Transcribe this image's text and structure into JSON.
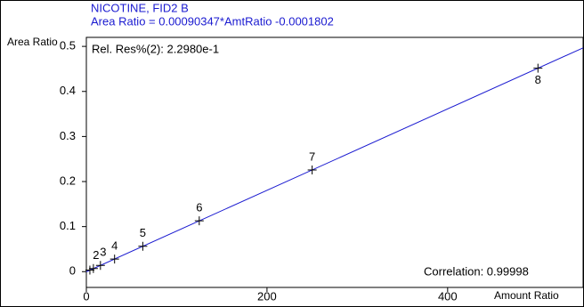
{
  "chart_data": {
    "type": "scatter",
    "title": "NICOTINE, FID2 B",
    "subtitle": "Area Ratio = 0.00090347*AmtRatio -0.0001802",
    "y_label": "Area Ratio",
    "x_label": "Amount Ratio",
    "annotations": [
      "Rel. Res%(2): 2.2980e-1",
      "Correlation: 0.99998"
    ],
    "fit": {
      "slope": 0.00090347,
      "intercept": -0.0001802,
      "color": "#1a1ad0"
    },
    "point_labels": [
      null,
      "2",
      "3",
      "4",
      "5",
      "6",
      "7",
      "8"
    ],
    "x": [
      3.9,
      7.8,
      15.6,
      31.25,
      62.5,
      125,
      250,
      500
    ],
    "values": [
      0.0034,
      0.0069,
      0.0139,
      0.028,
      0.0563,
      0.1128,
      0.2257,
      0.4515
    ],
    "color": "#000000",
    "xlim": [
      0,
      550
    ],
    "xticks": [
      0,
      200,
      400
    ],
    "ylim": [
      -0.035,
      0.52
    ],
    "yticks": [
      0,
      0.1,
      0.2,
      0.3,
      0.4,
      0.5
    ]
  }
}
